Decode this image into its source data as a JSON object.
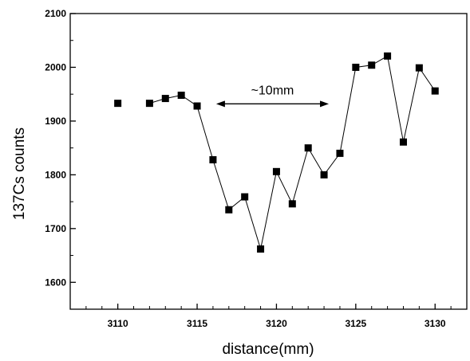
{
  "chart_data": {
    "type": "scatter",
    "title": "",
    "xlabel": "distance(mm)",
    "ylabel": "137Cs counts",
    "xlim": [
      3107,
      3132
    ],
    "ylim": [
      1550,
      2100
    ],
    "x_ticks": [
      3110,
      3115,
      3120,
      3125,
      3130
    ],
    "y_ticks": [
      1600,
      1700,
      1800,
      1900,
      2000,
      2100
    ],
    "grid": false,
    "legend": "none",
    "series": [
      {
        "points": [
          {
            "x": 3110,
            "y": 1933
          },
          {
            "x": 3112,
            "y": 1933
          },
          {
            "x": 3113,
            "y": 1942
          },
          {
            "x": 3114,
            "y": 1948
          },
          {
            "x": 3115,
            "y": 1928
          },
          {
            "x": 3116,
            "y": 1828
          },
          {
            "x": 3117,
            "y": 1735
          },
          {
            "x": 3118,
            "y": 1759
          },
          {
            "x": 3119,
            "y": 1662
          },
          {
            "x": 3120,
            "y": 1806
          },
          {
            "x": 3121,
            "y": 1746
          },
          {
            "x": 3122,
            "y": 1850
          },
          {
            "x": 3123,
            "y": 1800
          },
          {
            "x": 3124,
            "y": 1840
          },
          {
            "x": 3125,
            "y": 2000
          },
          {
            "x": 3126,
            "y": 2004
          },
          {
            "x": 3127,
            "y": 2021
          },
          {
            "x": 3128,
            "y": 1861
          },
          {
            "x": 3129,
            "y": 1999
          },
          {
            "x": 3130,
            "y": 1956
          }
        ],
        "connected_from_x": 3112
      }
    ],
    "annotations": [
      {
        "text": "~10mm",
        "type": "double-arrow",
        "x_from": 3116.2,
        "x_to": 3123.3,
        "y": 1932
      }
    ],
    "colors": {
      "marker": "#000000",
      "line": "#000000",
      "axis": "#000000"
    }
  }
}
